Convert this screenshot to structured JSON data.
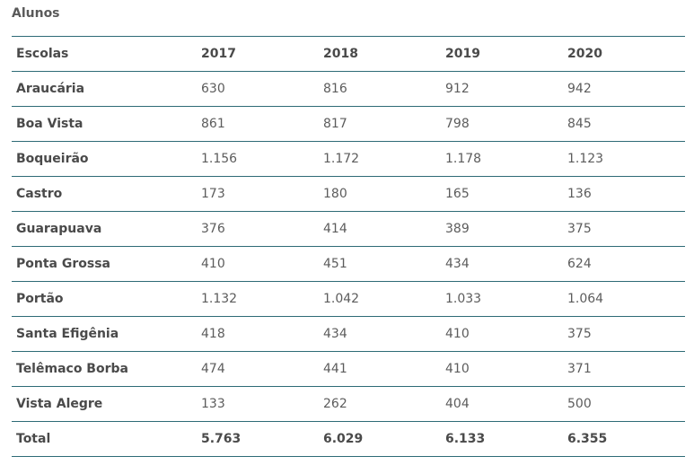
{
  "caption": "Alunos",
  "table": {
    "headers": [
      "Escolas",
      "2017",
      "2018",
      "2019",
      "2020"
    ],
    "rows": [
      {
        "school": "Araucária",
        "values": [
          "630",
          "816",
          "912",
          "942"
        ]
      },
      {
        "school": "Boa Vista",
        "values": [
          "861",
          "817",
          "798",
          "845"
        ]
      },
      {
        "school": "Boqueirão",
        "values": [
          "1.156",
          "1.172",
          "1.178",
          "1.123"
        ]
      },
      {
        "school": "Castro",
        "values": [
          "173",
          "180",
          "165",
          "136"
        ]
      },
      {
        "school": "Guarapuava",
        "values": [
          "376",
          "414",
          "389",
          "375"
        ]
      },
      {
        "school": "Ponta Grossa",
        "values": [
          "410",
          "451",
          "434",
          "624"
        ]
      },
      {
        "school": "Portão",
        "values": [
          "1.132",
          "1.042",
          "1.033",
          "1.064"
        ]
      },
      {
        "school": "Santa Efigênia",
        "values": [
          "418",
          "434",
          "410",
          "375"
        ]
      },
      {
        "school": "Telêmaco Borba",
        "values": [
          "474",
          "441",
          "410",
          "371"
        ]
      },
      {
        "school": "Vista Alegre",
        "values": [
          "133",
          "262",
          "404",
          "500"
        ]
      }
    ],
    "total": {
      "label": "Total",
      "values": [
        "5.763",
        "6.029",
        "6.133",
        "6.355"
      ]
    }
  },
  "colors": {
    "rule": "#2e6b76",
    "text": "#555555"
  }
}
